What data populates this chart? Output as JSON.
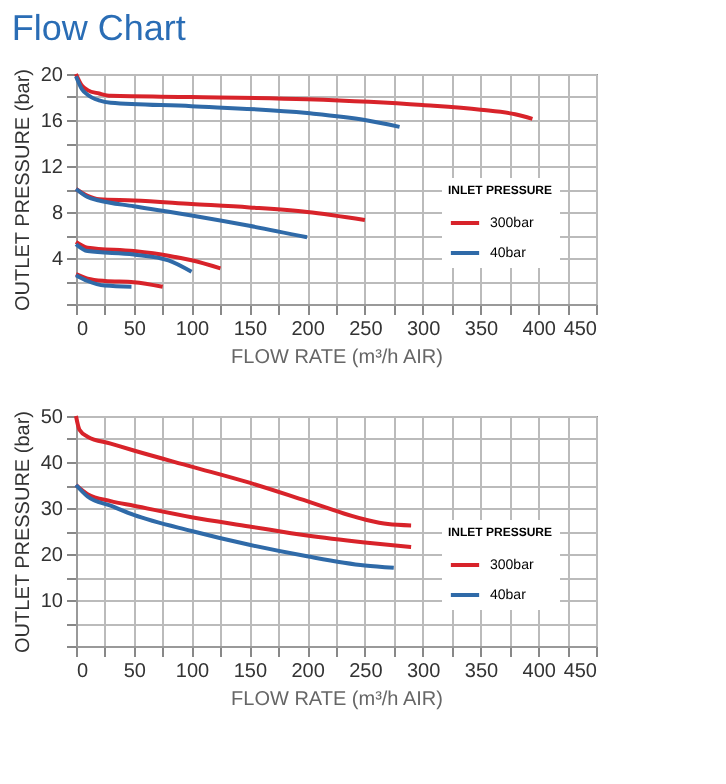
{
  "chart_data": [
    {
      "type": "line",
      "title": "Flow Chart",
      "xlabel": "FLOW RATE (m³/h AIR)",
      "ylabel": "OUTLET PRESSURE (bar)",
      "legend_title": "INLET PRESSURE",
      "legend": "bottom right",
      "grid": true,
      "xlim": [
        0,
        450
      ],
      "ylim": [
        0,
        20
      ],
      "xticks": [
        0,
        {
          "value": 25,
          "label": null
        },
        50,
        {
          "value": 75,
          "label": null
        },
        100,
        {
          "value": 125,
          "label": null
        },
        150,
        {
          "value": 175,
          "label": null
        },
        200,
        {
          "value": 225,
          "label": null
        },
        250,
        {
          "value": 275,
          "label": null
        },
        300,
        {
          "value": 325,
          "label": null
        },
        350,
        {
          "value": 375,
          "label": null
        },
        400,
        {
          "value": 425,
          "label": null
        },
        450
      ],
      "yticks": [
        {
          "value": 0,
          "label": null
        },
        {
          "value": 2,
          "label": null
        },
        4,
        {
          "value": 6,
          "label": null
        },
        8,
        {
          "value": 10,
          "label": null
        },
        12,
        {
          "value": 14,
          "label": null
        },
        16,
        {
          "value": 18,
          "label": null
        },
        20
      ],
      "series": [
        {
          "name": "300bar",
          "color": "#d8232a",
          "x": [
            0,
            5,
            10,
            20,
            30,
            100,
            200,
            300,
            350,
            380,
            395
          ],
          "values": [
            20,
            19,
            18.6,
            18.3,
            18.1,
            18,
            17.8,
            17.3,
            16.9,
            16.5,
            16.1
          ]
        },
        {
          "name": "40bar",
          "color": "#2f6aa8",
          "x": [
            0,
            5,
            10,
            20,
            30,
            100,
            200,
            250,
            280
          ],
          "values": [
            19.8,
            18.7,
            18.2,
            17.7,
            17.5,
            17.2,
            16.6,
            16,
            15.4
          ]
        },
        {
          "color": "#d8232a",
          "x": [
            0,
            10,
            20,
            50,
            100,
            150,
            200,
            250
          ],
          "values": [
            10,
            9.4,
            9.1,
            9,
            8.7,
            8.4,
            8,
            7.3
          ]
        },
        {
          "color": "#2f6aa8",
          "x": [
            0,
            10,
            20,
            50,
            100,
            150,
            200
          ],
          "values": [
            10,
            9.3,
            9,
            8.5,
            7.7,
            6.8,
            5.8
          ]
        },
        {
          "color": "#d8232a",
          "x": [
            0,
            10,
            50,
            80,
            100,
            125
          ],
          "values": [
            5.4,
            4.9,
            4.6,
            4.2,
            3.8,
            3.1
          ]
        },
        {
          "color": "#2f6aa8",
          "x": [
            0,
            10,
            50,
            80,
            100
          ],
          "values": [
            5.2,
            4.6,
            4.3,
            3.8,
            2.8
          ]
        },
        {
          "color": "#d8232a",
          "x": [
            0,
            10,
            25,
            50,
            75
          ],
          "values": [
            2.6,
            2.2,
            2,
            1.9,
            1.5
          ]
        },
        {
          "color": "#2f6aa8",
          "x": [
            0,
            10,
            25,
            48
          ],
          "values": [
            2.5,
            2,
            1.6,
            1.5
          ]
        }
      ]
    },
    {
      "type": "line",
      "xlabel": "FLOW RATE (m³/h AIR)",
      "ylabel": "OUTLET PRESSURE (bar)",
      "legend_title": "INLET PRESSURE",
      "legend": "bottom right",
      "grid": true,
      "xlim": [
        0,
        450
      ],
      "ylim": [
        0,
        50
      ],
      "xticks": [
        0,
        {
          "value": 25,
          "label": null
        },
        50,
        {
          "value": 75,
          "label": null
        },
        100,
        {
          "value": 125,
          "label": null
        },
        150,
        {
          "value": 175,
          "label": null
        },
        200,
        {
          "value": 225,
          "label": null
        },
        250,
        {
          "value": 275,
          "label": null
        },
        300,
        {
          "value": 325,
          "label": null
        },
        350,
        {
          "value": 375,
          "label": null
        },
        400,
        {
          "value": 425,
          "label": null
        },
        450
      ],
      "yticks": [
        {
          "value": 0,
          "label": null
        },
        {
          "value": 5,
          "label": null
        },
        10,
        {
          "value": 15,
          "label": null
        },
        20,
        {
          "value": 25,
          "label": null
        },
        30,
        {
          "value": 35,
          "label": null
        },
        40,
        {
          "value": 45,
          "label": null
        },
        50
      ],
      "series": [
        {
          "name": "300bar",
          "color": "#d8232a",
          "x": [
            0,
            3,
            10,
            30,
            50,
            100,
            150,
            200,
            250,
            270,
            290
          ],
          "values": [
            50,
            47,
            45.5,
            44,
            42.5,
            39,
            35.5,
            31.5,
            27.5,
            26.5,
            26.2
          ]
        },
        {
          "color": "#d8232a",
          "x": [
            0,
            10,
            30,
            50,
            100,
            150,
            200,
            250,
            290
          ],
          "values": [
            35,
            33,
            31.5,
            30.5,
            28,
            26,
            24,
            22.5,
            21.5
          ]
        },
        {
          "name": "40bar",
          "color": "#2f6aa8",
          "x": [
            0,
            10,
            30,
            50,
            100,
            150,
            200,
            250,
            275
          ],
          "values": [
            35,
            32.5,
            30.5,
            28.5,
            25,
            22,
            19.5,
            17.5,
            17
          ]
        }
      ]
    }
  ]
}
